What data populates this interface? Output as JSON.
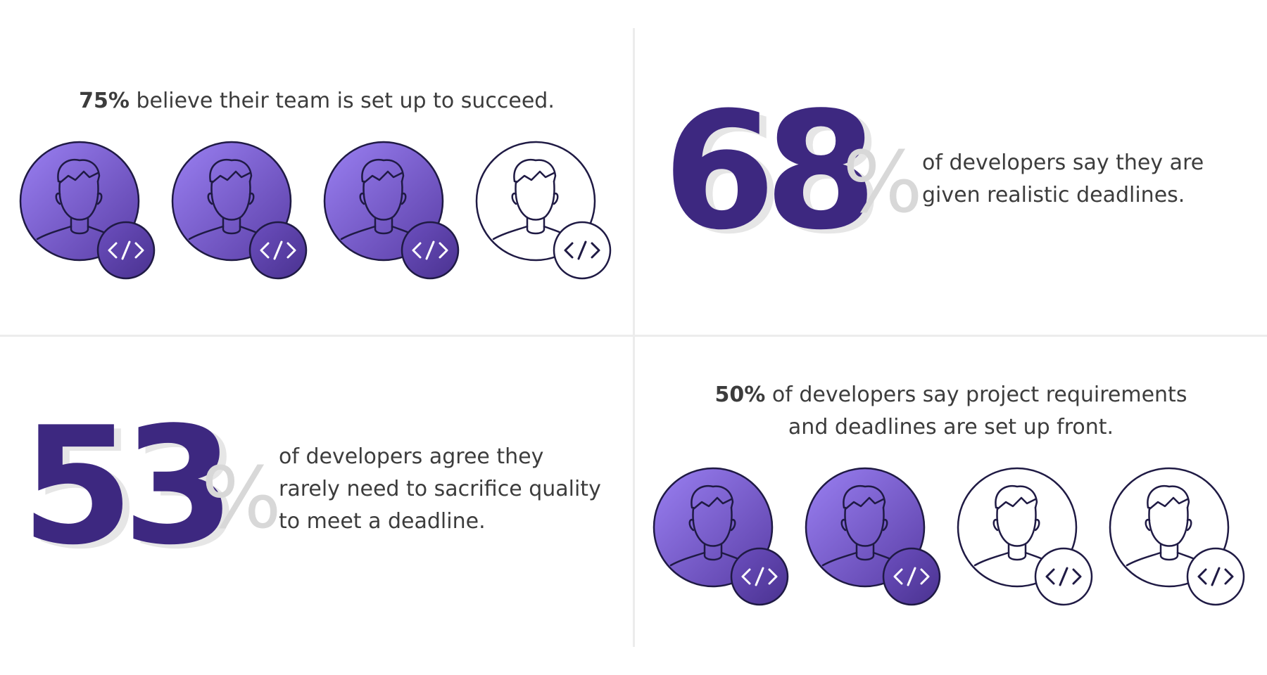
{
  "panels": {
    "top_left": {
      "stat": "75%",
      "text": " believe their team is set up to succeed.",
      "icons": [
        "filled",
        "filled",
        "filled",
        "outline"
      ]
    },
    "top_right": {
      "number": "68",
      "percent_sign": "%",
      "line1": "of developers say they are",
      "line2": "given realistic deadlines."
    },
    "bottom_left": {
      "number": "53",
      "percent_sign": "%",
      "line1": "of developers agree they",
      "line2": "rarely need to sacrifice quality",
      "line3": "to meet a deadline."
    },
    "bottom_right": {
      "stat": "50%",
      "line1_rest": " of developers say project requirements",
      "line2": "and deadlines are set up front.",
      "icons": [
        "filled",
        "filled",
        "outline",
        "outline"
      ]
    }
  },
  "colors": {
    "big_number": "#3d2880",
    "percent_sign": "#d8d8d8",
    "icon_fill_light": "#9a7ff0",
    "icon_fill_dark": "#5d40a8",
    "icon_stroke": "#1f1a44",
    "divider": "#ececec",
    "text": "#3c3c3c"
  },
  "icon_name": "developer-avatar-with-code-badge-icon"
}
